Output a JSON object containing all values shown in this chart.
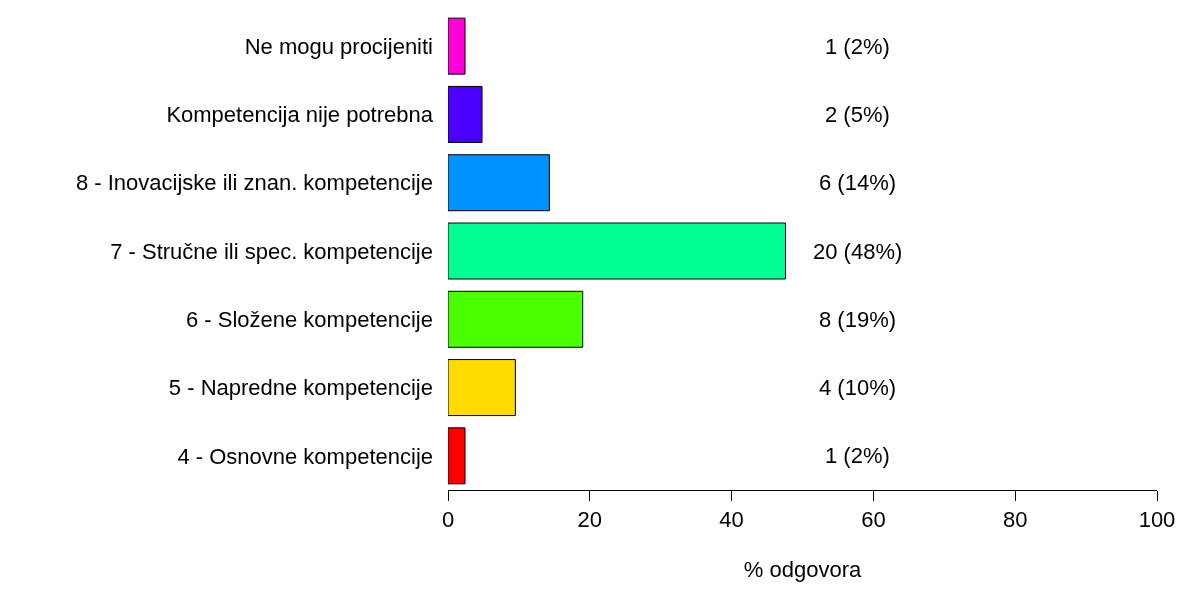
{
  "chart_data": {
    "type": "bar",
    "orientation": "horizontal",
    "xlabel": "% odgovora",
    "categories": [
      "Ne mogu procijeniti",
      "Kompetencija nije potrebna",
      "8 - Inovacijske ili znan. kompetencije",
      "7 - Stručne ili spec. kompetencije",
      "6 - Složene kompetencije",
      "5 - Napredne kompetencije",
      "4 - Osnovne kompetencije"
    ],
    "values": [
      2.4,
      4.8,
      14.3,
      47.6,
      19.0,
      9.5,
      2.4
    ],
    "colors": [
      "#ff00db",
      "#4900ff",
      "#0092ff",
      "#00ff92",
      "#49ff00",
      "#ffdb00",
      "#ff0000"
    ],
    "value_labels": [
      "1 (2%)",
      "2 (5%)",
      "6 (14%)",
      "20 (48%)",
      "8 (19%)",
      "4 (10%)",
      "1 (2%)"
    ],
    "xlim": [
      0,
      100
    ],
    "xticks": [
      0,
      20,
      40,
      60,
      80,
      100
    ]
  }
}
